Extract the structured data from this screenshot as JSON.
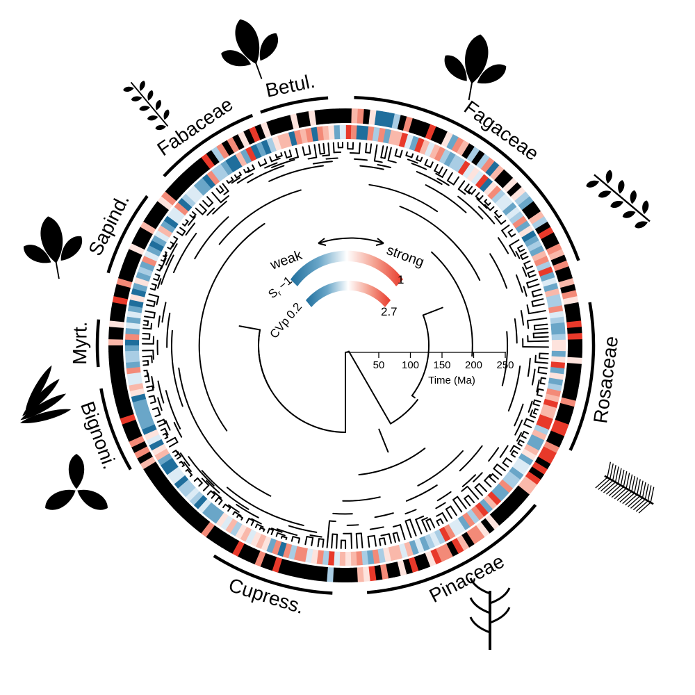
{
  "families": [
    {
      "id": "fagaceae",
      "label": "Fagaceae",
      "start": 2,
      "end": 70,
      "icon": "oak-leaf-icon"
    },
    {
      "id": "rosaceae",
      "label": "Rosaceae",
      "start": 80,
      "end": 115,
      "icon": "pinnate-leaf-icon"
    },
    {
      "id": "pinaceae",
      "label": "Pinaceae",
      "start": 130,
      "end": 175,
      "icon": "pine-branch-icon"
    },
    {
      "id": "cupress",
      "label": "Cupress.",
      "start": 183,
      "end": 212,
      "icon": "cypress-branch-icon"
    },
    {
      "id": "bignoni",
      "label": "Bignoni.",
      "start": 240,
      "end": 260,
      "icon": "palmate-leaf-icon"
    },
    {
      "id": "myrt",
      "label": "Myrt.",
      "start": 265,
      "end": 276,
      "icon": "eucalyptus-leaf-icon"
    },
    {
      "id": "sapind",
      "label": "Sapind.",
      "start": 287,
      "end": 307,
      "icon": "maple-leaf-icon"
    },
    {
      "id": "fabaceae",
      "label": "Fabaceae",
      "start": 313,
      "end": 338,
      "icon": "acacia-leaf-icon"
    },
    {
      "id": "betul",
      "label": "Betul.",
      "start": 340,
      "end": 356,
      "icon": "birch-leaf-icon"
    }
  ],
  "legend": {
    "weak": "weak",
    "strong": "strong",
    "sr_label": "S",
    "sr_sub": "r",
    "sr_min": "−1",
    "sr_max": "1",
    "cvp_label": "CVp",
    "cvp_min": "0.2",
    "cvp_max": "2.7"
  },
  "time_axis": {
    "title": "Time (Ma)",
    "ticks": [
      "50",
      "100",
      "150",
      "200",
      "250"
    ]
  },
  "colors": {
    "strong": "#e8392a",
    "weak": "#1f6e9c",
    "neutral": "#f4f4f4",
    "black": "#000000"
  }
}
